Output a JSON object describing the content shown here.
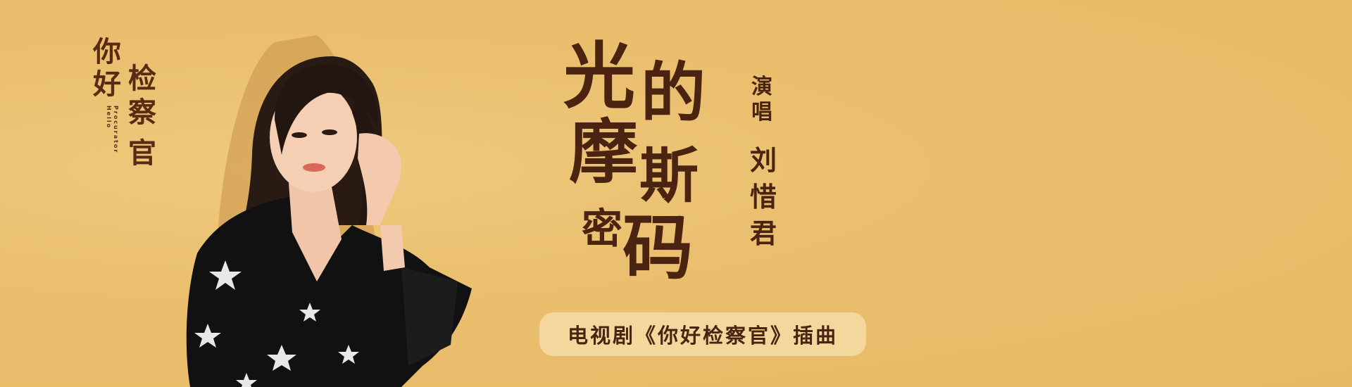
{
  "drama_logo": {
    "chars": [
      "你",
      "好",
      "检",
      "察",
      "官"
    ],
    "english": [
      "Hello",
      "Procurator"
    ]
  },
  "song_title": [
    "光",
    "的",
    "摩",
    "斯",
    "密",
    "码"
  ],
  "performer": {
    "label": [
      "演",
      "唱"
    ],
    "name": [
      "刘",
      "惜",
      "君"
    ]
  },
  "subtitle": "电视剧《你好检察官》插曲",
  "colors": {
    "background": "#e9be6d",
    "title_text": "#4a2410",
    "pill_background": "#f3d79d",
    "dress": "#111111",
    "stars": "#e8e8e8"
  }
}
